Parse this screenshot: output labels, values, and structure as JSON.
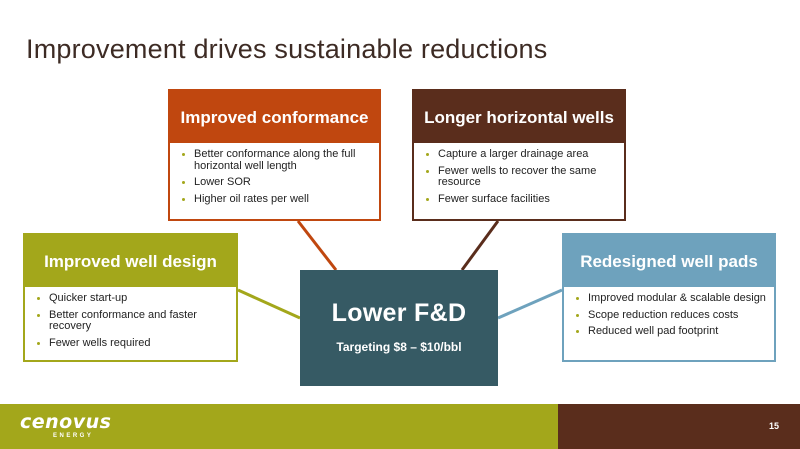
{
  "title": "Improvement drives sustainable reductions",
  "center": {
    "title": "Lower F&D",
    "subtitle": "Targeting $8 – $10/bbl"
  },
  "cards": {
    "conformance": {
      "title": "Improved conformance",
      "color": "#c0470f",
      "bullets": [
        "Better conformance along the full horizontal well length",
        "Lower SOR",
        "Higher oil rates per well"
      ]
    },
    "horizontal": {
      "title": "Longer horizontal wells",
      "color": "#5a2d1c",
      "bullets": [
        "Capture a larger drainage area",
        "Fewer wells to recover the same resource",
        "Fewer surface facilities"
      ]
    },
    "well_design": {
      "title": "Improved well design",
      "color": "#a3a71b",
      "bullets": [
        "Quicker start-up",
        "Better conformance and faster recovery",
        "Fewer wells required"
      ]
    },
    "pads": {
      "title": "Redesigned well pads",
      "color": "#6ea2bd",
      "bullets": [
        "Improved modular & scalable design",
        "Scope reduction reduces costs",
        "Reduced well pad footprint"
      ]
    }
  },
  "footer": {
    "logo": "cenovus",
    "logo_sub": "ENERGY",
    "page_number": "15"
  }
}
